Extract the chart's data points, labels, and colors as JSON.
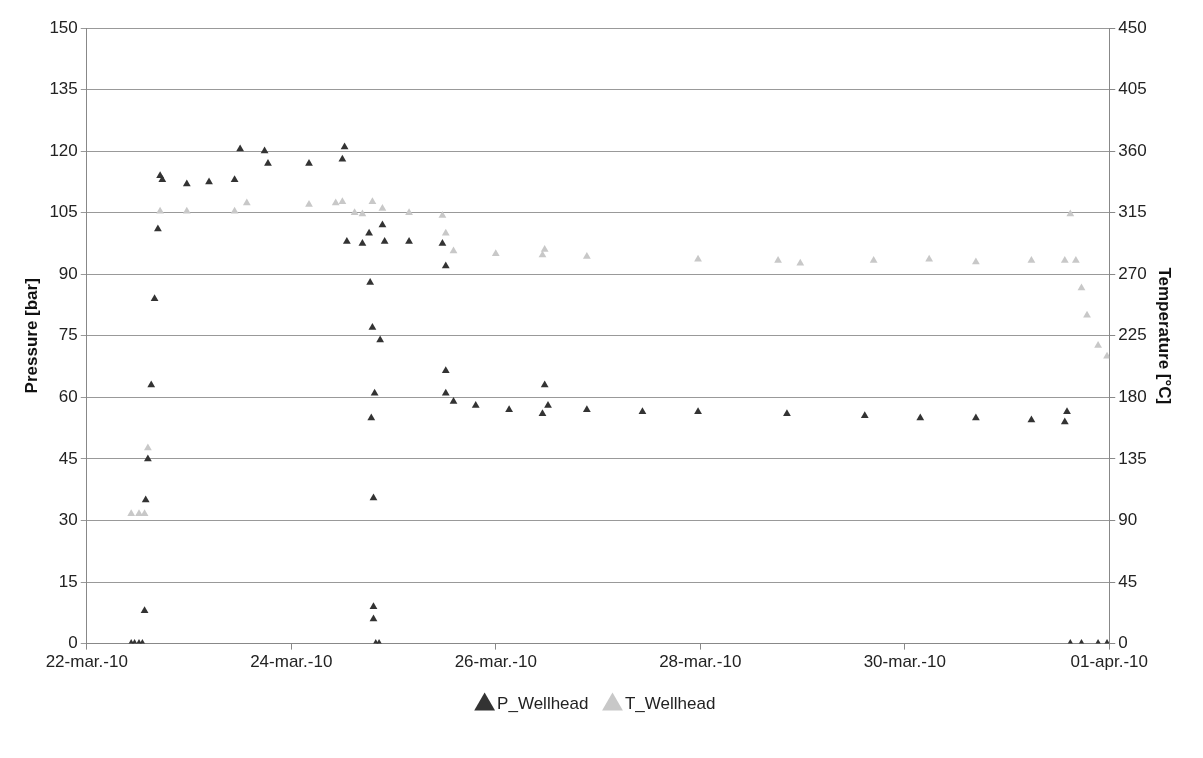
{
  "chart_data": {
    "type": "scatter",
    "ylabel": "Pressure [bar]",
    "y2label": "Temperature [°C]",
    "marker": "triangle",
    "legend": "bottom",
    "grid": "y",
    "xlim": [
      "--03-22",
      "--04-01"
    ],
    "xticks": [
      {
        "value": "--03-22",
        "label": "22-mar.-10"
      },
      {
        "value": "--03-24",
        "label": "24-mar.-10"
      },
      {
        "value": "--03-26",
        "label": "26-mar.-10"
      },
      {
        "value": "--03-28",
        "label": "28-mar.-10"
      },
      {
        "value": "--03-30",
        "label": "30-mar.-10"
      },
      {
        "value": "--04-01",
        "label": "01-apr.-10"
      }
    ],
    "ylim": [
      0,
      150
    ],
    "yticks": [
      0,
      15,
      30,
      45,
      60,
      75,
      90,
      105,
      120,
      135,
      150
    ],
    "y2lim": [
      0,
      450
    ],
    "y2ticks": [
      0,
      45,
      90,
      135,
      180,
      225,
      270,
      315,
      360,
      405,
      450
    ],
    "series": [
      {
        "name": "P_Wellhead",
        "color": "#333333",
        "x": [
          "--03-22T10:26",
          "--03-22T11:13",
          "--03-22T12:16",
          "--03-22T13:03",
          "--03-22T13:34",
          "--03-22T13:50",
          "--03-22T14:21",
          "--03-22T15:08",
          "--03-22T15:55",
          "--03-22T16:42",
          "--03-22T17:13",
          "--03-22T17:44",
          "--03-22T23:29",
          "--03-23T04:42",
          "--03-23T10:42",
          "--03-23T12:00",
          "--03-23T17:44",
          "--03-23T18:32",
          "--03-24T04:10",
          "--03-24T12:00",
          "--03-24T12:31",
          "--03-24T13:03",
          "--03-24T16:42",
          "--03-24T18:16",
          "--03-24T18:31",
          "--03-24T18:47",
          "--03-24T19:03",
          "--03-24T19:18",
          "--03-24T19:18",
          "--03-24T19:18",
          "--03-24T19:34",
          "--03-24T19:50",
          "--03-24T20:37",
          "--03-24T20:52",
          "--03-24T21:24",
          "--03-24T21:55",
          "--03-25T03:39",
          "--03-25T11:29",
          "--03-25T12:16",
          "--03-25T12:16",
          "--03-25T12:16",
          "--03-25T14:05",
          "--03-25T19:18",
          "--03-26T03:08",
          "--03-26T10:58",
          "--03-26T11:29",
          "--03-26T12:16",
          "--03-26T21:23",
          "--03-27T10:26",
          "--03-27T23:29",
          "--03-28T20:21",
          "--03-29T14:37",
          "--03-30T03:39",
          "--03-30T16:42",
          "--03-31T05:44",
          "--03-31T13:34",
          "--03-31T14:05",
          "--03-31T14:52",
          "--03-31T17:29",
          "--03-31T21:23",
          "--03-31T23:29"
        ],
        "values": [
          0,
          0,
          0,
          0,
          8,
          35,
          45,
          63,
          84,
          101,
          114,
          113,
          112,
          112.5,
          113,
          120.5,
          120,
          117,
          117,
          118,
          121,
          98,
          97.5,
          100,
          88,
          55,
          77,
          35.5,
          9,
          6,
          61,
          0,
          0,
          74,
          102,
          98,
          98,
          97.5,
          92,
          66.5,
          61,
          59,
          58,
          57,
          56,
          63,
          58,
          57,
          56.5,
          56.5,
          56,
          55.5,
          55,
          55,
          54.5,
          54,
          56.5,
          0,
          0,
          0,
          0
        ]
      },
      {
        "name": "T_Wellhead",
        "color": "#c8c8c8",
        "axis": "y2",
        "x": [
          "--03-22T10:26",
          "--03-22T12:16",
          "--03-22T13:34",
          "--03-22T14:21",
          "--03-22T17:13",
          "--03-22T23:29",
          "--03-23T10:42",
          "--03-23T13:34",
          "--03-24T04:10",
          "--03-24T10:26",
          "--03-24T12:00",
          "--03-24T14:52",
          "--03-24T16:42",
          "--03-24T19:03",
          "--03-24T21:24",
          "--03-25T03:39",
          "--03-25T11:29",
          "--03-25T12:16",
          "--03-25T14:05",
          "--03-26T00:00",
          "--03-26T10:58",
          "--03-26T11:29",
          "--03-26T21:23",
          "--03-27T23:29",
          "--03-28T18:16",
          "--03-28T23:29",
          "--03-29T16:42",
          "--03-30T05:44",
          "--03-30T16:42",
          "--03-31T05:44",
          "--03-31T13:34",
          "--03-31T14:52",
          "--03-31T16:10",
          "--03-31T17:29",
          "--03-31T18:47",
          "--03-31T21:23",
          "--03-31T23:29"
        ],
        "values": [
          95,
          95,
          95,
          143,
          316,
          316,
          316,
          322,
          321,
          322,
          323,
          315,
          314,
          323,
          318,
          315,
          313,
          300,
          287,
          285,
          284,
          288,
          283,
          281,
          280,
          278,
          280,
          281,
          279,
          280,
          280,
          314,
          280,
          260,
          240,
          218,
          210
        ]
      }
    ]
  }
}
